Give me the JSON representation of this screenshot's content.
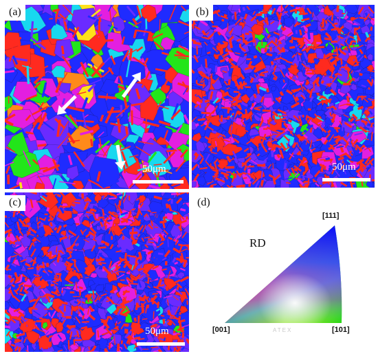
{
  "panels": {
    "a": {
      "label": "(a)",
      "scale": "50μm"
    },
    "b": {
      "label": "(b)",
      "scale": "50μm"
    },
    "c": {
      "label": "(c)",
      "scale": "50μm"
    },
    "d": {
      "label": "(d)"
    }
  },
  "ipf": {
    "label_001": "[001]",
    "label_101": "[101]",
    "label_111": "[111]",
    "direction": "RD",
    "watermark": "ATEX"
  },
  "palette": {
    "red": "#ff2a1f",
    "blue": "#1f2bff",
    "violet": "#6a2bff",
    "magenta": "#e31fe0",
    "green": "#22e51a",
    "cyan": "#18d8ef",
    "yellow": "#ffe21a",
    "orange": "#ff8a1a"
  }
}
